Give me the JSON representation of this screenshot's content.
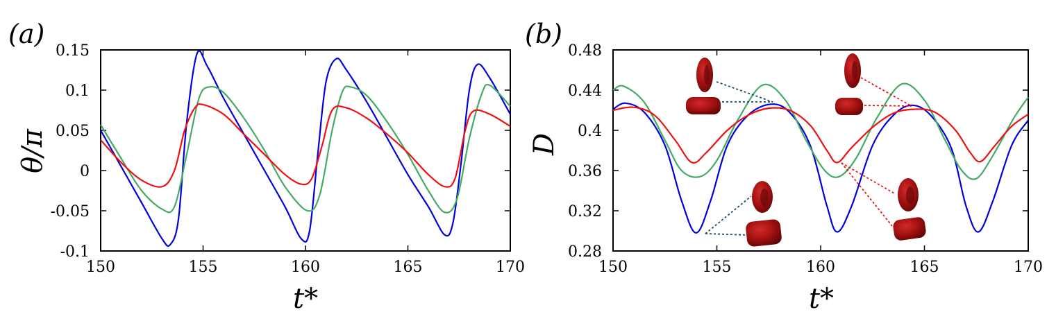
{
  "chart_data": [
    {
      "type": "line",
      "panel_label": "(a)",
      "xlabel": "t*",
      "ylabel": "θ/π",
      "xlim": [
        150,
        170
      ],
      "ylim": [
        -0.1,
        0.15
      ],
      "xticks": [
        150,
        155,
        160,
        165,
        170
      ],
      "xtick_labels": [
        "150",
        "155",
        "160",
        "165",
        "170"
      ],
      "yticks": [
        -0.1,
        -0.05,
        0,
        0.05,
        0.1,
        0.15
      ],
      "ytick_labels": [
        "-0.1",
        "-0.05",
        "0",
        "0.05",
        "0.1",
        "0.15"
      ],
      "grid": false,
      "series": [
        {
          "color": "#0000dd",
          "x": [
            150,
            151,
            152,
            153,
            153.4,
            153.8,
            154.2,
            154.7,
            155.2,
            156,
            157,
            158,
            159,
            159.8,
            160.2,
            160.6,
            161.0,
            161.5,
            162.0,
            163,
            164,
            165,
            166,
            166.8,
            167.2,
            167.6,
            168.0,
            168.4,
            169,
            170
          ],
          "y": [
            0.05,
            0.005,
            -0.04,
            -0.085,
            -0.092,
            -0.06,
            0.06,
            0.145,
            0.13,
            0.09,
            0.045,
            0.0,
            -0.045,
            -0.085,
            -0.075,
            0.02,
            0.11,
            0.139,
            0.125,
            0.085,
            0.04,
            -0.005,
            -0.045,
            -0.08,
            -0.065,
            0.01,
            0.1,
            0.132,
            0.115,
            0.07
          ]
        },
        {
          "color": "#44aa66",
          "x": [
            150,
            151,
            152,
            153,
            153.6,
            154.2,
            154.8,
            155.3,
            156,
            157,
            158,
            159,
            160.1,
            160.7,
            161.3,
            161.8,
            162.2,
            163,
            164,
            165,
            166,
            166.8,
            167.4,
            168.0,
            168.6,
            169,
            170
          ],
          "y": [
            0.057,
            0.015,
            -0.025,
            -0.048,
            -0.045,
            0.02,
            0.09,
            0.104,
            0.097,
            0.065,
            0.025,
            -0.02,
            -0.05,
            -0.03,
            0.05,
            0.098,
            0.104,
            0.093,
            0.06,
            0.02,
            -0.025,
            -0.052,
            -0.035,
            0.04,
            0.095,
            0.106,
            0.08
          ]
        },
        {
          "color": "#ee1111",
          "x": [
            150,
            151,
            152,
            153,
            153.6,
            154.1,
            154.6,
            155.0,
            156,
            157,
            158,
            159,
            159.8,
            160.3,
            160.8,
            161.3,
            162,
            163,
            164,
            165,
            166,
            166.8,
            167.3,
            167.8,
            168.2,
            169,
            170
          ],
          "y": [
            0.038,
            0.01,
            -0.012,
            -0.02,
            0.0,
            0.05,
            0.078,
            0.082,
            0.07,
            0.045,
            0.02,
            -0.005,
            -0.017,
            -0.01,
            0.03,
            0.075,
            0.078,
            0.065,
            0.045,
            0.022,
            -0.005,
            -0.02,
            -0.01,
            0.05,
            0.074,
            0.07,
            0.055
          ]
        }
      ]
    },
    {
      "type": "line",
      "panel_label": "(b)",
      "xlabel": "t*",
      "ylabel": "D",
      "xlim": [
        150,
        170
      ],
      "ylim": [
        0.28,
        0.48
      ],
      "xticks": [
        150,
        155,
        160,
        165,
        170
      ],
      "xtick_labels": [
        "150",
        "155",
        "160",
        "165",
        "170"
      ],
      "yticks": [
        0.28,
        0.32,
        0.36,
        0.4,
        0.44,
        0.48
      ],
      "ytick_labels": [
        "0.28",
        "0.32",
        "0.36",
        "0.4",
        "0.44",
        "0.48"
      ],
      "grid": false,
      "series": [
        {
          "color": "#0000dd",
          "x": [
            150,
            150.6,
            151.5,
            152.5,
            153.3,
            154.0,
            154.7,
            155.5,
            156.5,
            157.6,
            158.5,
            159.5,
            160.3,
            160.8,
            161.5,
            162.5,
            163.5,
            164.4,
            165.3,
            166.3,
            167.0,
            167.6,
            168.3,
            169.2,
            170
          ],
          "y": [
            0.421,
            0.427,
            0.418,
            0.385,
            0.33,
            0.298,
            0.33,
            0.385,
            0.415,
            0.426,
            0.418,
            0.385,
            0.325,
            0.299,
            0.325,
            0.385,
            0.415,
            0.425,
            0.415,
            0.382,
            0.325,
            0.299,
            0.33,
            0.385,
            0.41
          ]
        },
        {
          "color": "#44aa66",
          "x": [
            150,
            150.5,
            151.5,
            152.5,
            153.3,
            154.2,
            155.0,
            156.0,
            157.2,
            158.3,
            159.3,
            160.2,
            160.9,
            161.7,
            162.7,
            163.9,
            165.0,
            166.0,
            166.8,
            167.5,
            168.3,
            169.3,
            170
          ],
          "y": [
            0.44,
            0.444,
            0.428,
            0.39,
            0.36,
            0.354,
            0.37,
            0.41,
            0.445,
            0.43,
            0.39,
            0.36,
            0.354,
            0.372,
            0.412,
            0.446,
            0.43,
            0.39,
            0.36,
            0.352,
            0.375,
            0.412,
            0.433
          ]
        },
        {
          "color": "#ee1111",
          "x": [
            150,
            151.0,
            152.0,
            153.0,
            153.8,
            154.5,
            155.5,
            156.5,
            157.5,
            158.5,
            159.5,
            160.3,
            160.8,
            161.5,
            162.5,
            163.5,
            164.5,
            165.5,
            166.5,
            167.2,
            167.7,
            168.4,
            169.2,
            170
          ],
          "y": [
            0.42,
            0.423,
            0.415,
            0.39,
            0.368,
            0.378,
            0.4,
            0.415,
            0.422,
            0.42,
            0.405,
            0.38,
            0.368,
            0.383,
            0.403,
            0.417,
            0.421,
            0.418,
            0.4,
            0.378,
            0.369,
            0.385,
            0.404,
            0.416
          ]
        }
      ]
    }
  ]
}
